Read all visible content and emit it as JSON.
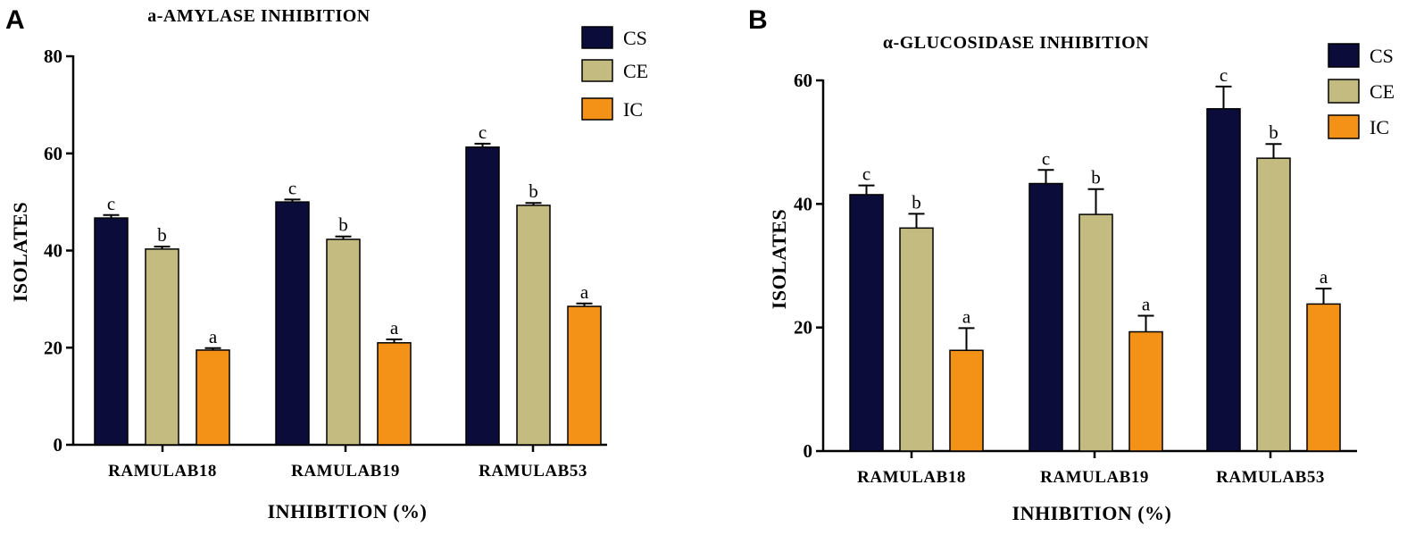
{
  "chart_data": [
    {
      "panel": "A",
      "type": "bar",
      "title": "a-AMYLASE INHIBITION",
      "xlabel": "INHIBITION (%)",
      "ylabel": "ISOLATES",
      "ylim": [
        0,
        80
      ],
      "yticks": [
        "0",
        "20",
        "40",
        "60",
        "80"
      ],
      "categories": [
        "RAMULAB18",
        "RAMULAB19",
        "RAMULAB53"
      ],
      "series": [
        {
          "name": "CS",
          "color": "#0b0c3a",
          "values": [
            46.7,
            50.0,
            61.3
          ],
          "errors": [
            0.6,
            0.5,
            0.7
          ],
          "labels": [
            "c",
            "c",
            "c"
          ]
        },
        {
          "name": "CE",
          "color": "#c3bb7f",
          "values": [
            40.3,
            42.3,
            49.3
          ],
          "errors": [
            0.5,
            0.6,
            0.5
          ],
          "labels": [
            "b",
            "b",
            "b"
          ]
        },
        {
          "name": "IC",
          "color": "#f39216",
          "values": [
            19.5,
            21.0,
            28.5
          ],
          "errors": [
            0.4,
            0.7,
            0.6
          ],
          "labels": [
            "a",
            "a",
            "a"
          ]
        }
      ],
      "legend": {
        "placement": "top-right",
        "entries": [
          "CS",
          "CE",
          "IC"
        ]
      }
    },
    {
      "panel": "B",
      "type": "bar",
      "title": "α-GLUCOSIDASE INHIBITION",
      "xlabel": "INHIBITION (%)",
      "ylabel": "ISOLATES",
      "ylim": [
        0,
        60
      ],
      "yticks": [
        "0",
        "20",
        "40",
        "60"
      ],
      "categories": [
        "RAMULAB18",
        "RAMULAB19",
        "RAMULAB53"
      ],
      "series": [
        {
          "name": "CS",
          "color": "#0b0c3a",
          "values": [
            41.5,
            43.3,
            55.4
          ],
          "errors": [
            1.5,
            2.2,
            3.6
          ],
          "labels": [
            "c",
            "c",
            "c"
          ]
        },
        {
          "name": "CE",
          "color": "#c3bb7f",
          "values": [
            36.1,
            38.3,
            47.4
          ],
          "errors": [
            2.3,
            4.1,
            2.3
          ],
          "labels": [
            "b",
            "b",
            "b"
          ]
        },
        {
          "name": "IC",
          "color": "#f39216",
          "values": [
            16.3,
            19.3,
            23.8
          ],
          "errors": [
            3.6,
            2.6,
            2.5
          ],
          "labels": [
            "a",
            "a",
            "a"
          ]
        }
      ],
      "legend": {
        "placement": "top-right",
        "entries": [
          "CS",
          "CE",
          "IC"
        ]
      }
    }
  ]
}
